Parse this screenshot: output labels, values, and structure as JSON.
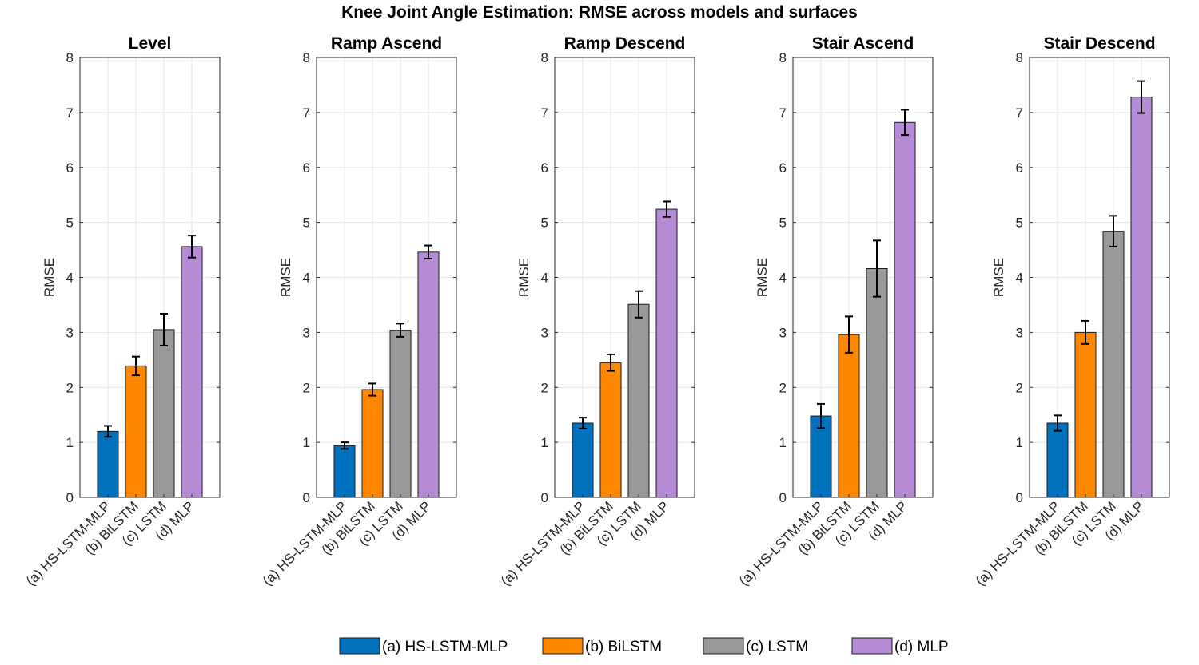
{
  "title": "Knee Joint Angle Estimation: RMSE across models and surfaces",
  "legend": [
    {
      "label": "(a) HS-LSTM-MLP",
      "color": "#0072BD"
    },
    {
      "label": "(b) BiLSTM",
      "color": "#FF8800"
    },
    {
      "label": "(c) LSTM",
      "color": "#999999"
    },
    {
      "label": "(d) MLP",
      "color": "#B58BD6"
    }
  ],
  "chart_data": [
    {
      "type": "bar",
      "title": "Level",
      "categories": [
        "(a) HS-LSTM-MLP",
        "(b) BiLSTM",
        "(c) LSTM",
        "(d) MLP"
      ],
      "values": [
        1.2,
        2.39,
        3.05,
        4.56
      ],
      "errors": [
        0.1,
        0.17,
        0.29,
        0.2
      ],
      "xlabel": "",
      "ylabel": "RMSE",
      "ylim": [
        0,
        8
      ],
      "yticks": [
        0,
        1,
        2,
        3,
        4,
        5,
        6,
        7,
        8
      ],
      "grid": true
    },
    {
      "type": "bar",
      "title": "Ramp Ascend",
      "categories": [
        "(a) HS-LSTM-MLP",
        "(b) BiLSTM",
        "(c) LSTM",
        "(d) MLP"
      ],
      "values": [
        0.94,
        1.96,
        3.04,
        4.46
      ],
      "errors": [
        0.06,
        0.11,
        0.12,
        0.12
      ],
      "xlabel": "",
      "ylabel": "RMSE",
      "ylim": [
        0,
        8
      ],
      "yticks": [
        0,
        1,
        2,
        3,
        4,
        5,
        6,
        7,
        8
      ],
      "grid": true
    },
    {
      "type": "bar",
      "title": "Ramp Descend",
      "categories": [
        "(a) HS-LSTM-MLP",
        "(b) BiLSTM",
        "(c) LSTM",
        "(d) MLP"
      ],
      "values": [
        1.35,
        2.45,
        3.51,
        5.24
      ],
      "errors": [
        0.1,
        0.15,
        0.24,
        0.14
      ],
      "xlabel": "",
      "ylabel": "RMSE",
      "ylim": [
        0,
        8
      ],
      "yticks": [
        0,
        1,
        2,
        3,
        4,
        5,
        6,
        7,
        8
      ],
      "grid": true
    },
    {
      "type": "bar",
      "title": "Stair Ascend",
      "categories": [
        "(a) HS-LSTM-MLP",
        "(b) BiLSTM",
        "(c) LSTM",
        "(d) MLP"
      ],
      "values": [
        1.48,
        2.96,
        4.16,
        6.82
      ],
      "errors": [
        0.22,
        0.33,
        0.51,
        0.23
      ],
      "xlabel": "",
      "ylabel": "RMSE",
      "ylim": [
        0,
        8
      ],
      "yticks": [
        0,
        1,
        2,
        3,
        4,
        5,
        6,
        7,
        8
      ],
      "grid": true
    },
    {
      "type": "bar",
      "title": "Stair Descend",
      "categories": [
        "(a) HS-LSTM-MLP",
        "(b) BiLSTM",
        "(c) LSTM",
        "(d) MLP"
      ],
      "values": [
        1.35,
        3.0,
        4.84,
        7.28
      ],
      "errors": [
        0.14,
        0.21,
        0.28,
        0.29
      ],
      "xlabel": "",
      "ylabel": "RMSE",
      "ylim": [
        0,
        8
      ],
      "yticks": [
        0,
        1,
        2,
        3,
        4,
        5,
        6,
        7,
        8
      ],
      "grid": true
    }
  ]
}
